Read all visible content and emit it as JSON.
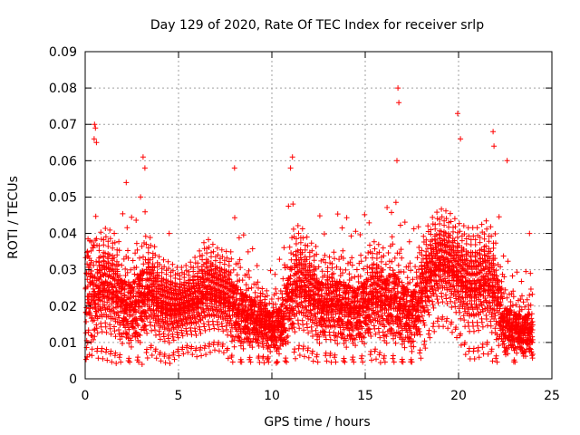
{
  "chart_data": {
    "type": "scatter",
    "title": "Day 129 of 2020, Rate Of TEC Index for receiver srlp",
    "xlabel": "GPS time / hours",
    "ylabel": "ROTI / TECUs",
    "xlim": [
      0,
      25
    ],
    "ylim": [
      0,
      0.09
    ],
    "grid": true,
    "marker": "+",
    "color": "#ff0000",
    "x_ticks": [
      0,
      5,
      10,
      15,
      20,
      25
    ],
    "x_tick_labels": [
      "0",
      "5",
      "10",
      "15",
      "20",
      "25"
    ],
    "y_ticks": [
      0,
      0.01,
      0.02,
      0.03,
      0.04,
      0.05,
      0.06,
      0.07,
      0.08,
      0.09
    ],
    "y_tick_labels": [
      "0",
      "0.01",
      "0.02",
      "0.03",
      "0.04",
      "0.05",
      "0.06",
      "0.07",
      "0.08",
      "0.09"
    ],
    "profile_hours": [
      0,
      0.5,
      1,
      1.5,
      2,
      2.5,
      3,
      3.5,
      4,
      4.5,
      5,
      5.5,
      6,
      6.5,
      7,
      7.5,
      8,
      8.5,
      9,
      9.5,
      10,
      10.5,
      11,
      11.5,
      12,
      12.5,
      13,
      13.5,
      14,
      14.5,
      15,
      15.5,
      16,
      16.5,
      17,
      17.5,
      18,
      18.5,
      19,
      19.5,
      20,
      20.5,
      21,
      21.5,
      22,
      22.5,
      23,
      23.5,
      24
    ],
    "profile_median": [
      0.021,
      0.024,
      0.026,
      0.025,
      0.022,
      0.021,
      0.024,
      0.025,
      0.021,
      0.02,
      0.02,
      0.021,
      0.022,
      0.025,
      0.024,
      0.023,
      0.021,
      0.019,
      0.018,
      0.016,
      0.015,
      0.016,
      0.025,
      0.027,
      0.024,
      0.022,
      0.021,
      0.022,
      0.021,
      0.02,
      0.022,
      0.024,
      0.022,
      0.024,
      0.021,
      0.019,
      0.024,
      0.03,
      0.033,
      0.032,
      0.029,
      0.026,
      0.026,
      0.028,
      0.024,
      0.016,
      0.015,
      0.014,
      0.015
    ],
    "profile_spread": [
      0.009,
      0.008,
      0.009,
      0.009,
      0.008,
      0.008,
      0.009,
      0.008,
      0.007,
      0.007,
      0.006,
      0.006,
      0.007,
      0.008,
      0.007,
      0.007,
      0.008,
      0.007,
      0.006,
      0.005,
      0.005,
      0.006,
      0.009,
      0.009,
      0.008,
      0.008,
      0.007,
      0.008,
      0.008,
      0.007,
      0.008,
      0.008,
      0.008,
      0.009,
      0.008,
      0.007,
      0.008,
      0.008,
      0.008,
      0.008,
      0.008,
      0.009,
      0.009,
      0.009,
      0.009,
      0.006,
      0.005,
      0.005,
      0.006
    ],
    "sample_interval_hours": 0.012,
    "outliers": [
      {
        "x": 0.5,
        "y": 0.07
      },
      {
        "x": 0.55,
        "y": 0.069
      },
      {
        "x": 0.48,
        "y": 0.066
      },
      {
        "x": 0.6,
        "y": 0.065
      },
      {
        "x": 3.1,
        "y": 0.061
      },
      {
        "x": 3.2,
        "y": 0.058
      },
      {
        "x": 8.0,
        "y": 0.058
      },
      {
        "x": 11.1,
        "y": 0.061
      },
      {
        "x": 11.0,
        "y": 0.058
      },
      {
        "x": 16.75,
        "y": 0.08
      },
      {
        "x": 16.8,
        "y": 0.076
      },
      {
        "x": 16.7,
        "y": 0.06
      },
      {
        "x": 19.95,
        "y": 0.073
      },
      {
        "x": 20.1,
        "y": 0.066
      },
      {
        "x": 21.85,
        "y": 0.068
      },
      {
        "x": 21.9,
        "y": 0.064
      },
      {
        "x": 22.6,
        "y": 0.06
      },
      {
        "x": 2.2,
        "y": 0.054
      },
      {
        "x": 23.8,
        "y": 0.04
      },
      {
        "x": 0.1,
        "y": 0.006
      },
      {
        "x": 3.05,
        "y": 0.004
      },
      {
        "x": 17.5,
        "y": 0.0075
      },
      {
        "x": 9.8,
        "y": 0.006
      },
      {
        "x": 4.5,
        "y": 0.04
      }
    ]
  }
}
